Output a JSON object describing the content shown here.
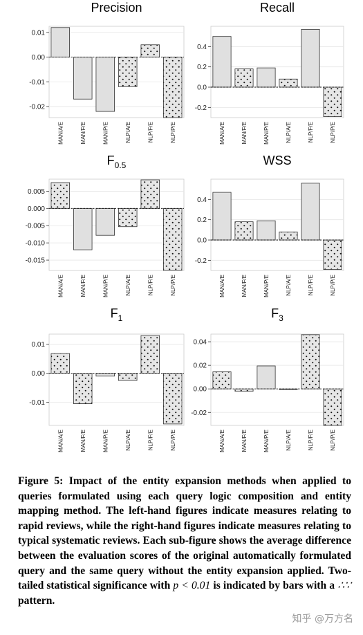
{
  "chart_data": [
    {
      "type": "bar",
      "title": "Precision",
      "categories": [
        "MAN/A/E",
        "MAN/F/E",
        "MAN/P/E",
        "NLP/A/E",
        "NLP/F/E",
        "NLP/P/E"
      ],
      "values": [
        0.012,
        -0.017,
        -0.022,
        -0.012,
        0.005,
        -0.0245
      ],
      "significant": [
        false,
        false,
        false,
        true,
        true,
        true
      ],
      "ylim": [
        -0.0245,
        0.0125
      ],
      "yticks": [
        0.01,
        0.0,
        -0.01,
        -0.02
      ],
      "ytick_labels": [
        "0.01",
        "0.00",
        "-0.01",
        "-0.02"
      ],
      "grid": true
    },
    {
      "type": "bar",
      "title": "Recall",
      "categories": [
        "MAN/A/E",
        "MAN/F/E",
        "MAN/P/E",
        "NLP/A/E",
        "NLP/F/E",
        "NLP/P/E"
      ],
      "values": [
        0.5,
        0.18,
        0.19,
        0.08,
        0.57,
        -0.29
      ],
      "significant": [
        false,
        true,
        false,
        true,
        false,
        true
      ],
      "ylim": [
        -0.3,
        0.6
      ],
      "yticks": [
        0.4,
        0.2,
        0.0,
        -0.2
      ],
      "ytick_labels": [
        "0.4",
        "0.2",
        "0.0",
        "-0.2"
      ],
      "grid": true
    },
    {
      "type": "bar",
      "title": "F",
      "title_sub": "0.5",
      "categories": [
        "MAN/A/E",
        "MAN/F/E",
        "MAN/P/E",
        "NLP/A/E",
        "NLP/F/E",
        "NLP/P/E"
      ],
      "values": [
        0.0075,
        -0.012,
        -0.0078,
        -0.0053,
        0.0083,
        -0.018
      ],
      "significant": [
        true,
        false,
        false,
        true,
        true,
        true
      ],
      "ylim": [
        -0.018,
        0.0085
      ],
      "yticks": [
        0.005,
        0.0,
        -0.005,
        -0.01,
        -0.015
      ],
      "ytick_labels": [
        "0.005",
        "0.000",
        "-0.005",
        "-0.010",
        "-0.015"
      ],
      "grid": true
    },
    {
      "type": "bar",
      "title": "WSS",
      "categories": [
        "MAN/A/E",
        "MAN/F/E",
        "MAN/P/E",
        "NLP/A/E",
        "NLP/F/E",
        "NLP/P/E"
      ],
      "values": [
        0.47,
        0.18,
        0.19,
        0.08,
        0.56,
        -0.29
      ],
      "significant": [
        false,
        true,
        false,
        true,
        false,
        true
      ],
      "ylim": [
        -0.3,
        0.6
      ],
      "yticks": [
        0.4,
        0.2,
        0.0,
        -0.2
      ],
      "ytick_labels": [
        "0.4",
        "0.2",
        "0.0",
        "-0.2"
      ],
      "grid": true
    },
    {
      "type": "bar",
      "title": "F",
      "title_sub": "1",
      "categories": [
        "MAN/A/E",
        "MAN/F/E",
        "MAN/P/E",
        "NLP/A/E",
        "NLP/F/E",
        "NLP/P/E"
      ],
      "values": [
        0.0068,
        -0.0105,
        -0.001,
        -0.0025,
        0.013,
        -0.0175
      ],
      "significant": [
        true,
        true,
        false,
        true,
        true,
        true
      ],
      "ylim": [
        -0.018,
        0.0135
      ],
      "yticks": [
        0.01,
        0.0,
        -0.01
      ],
      "ytick_labels": [
        "0.01",
        "0.00",
        "-0.01"
      ],
      "grid": true
    },
    {
      "type": "bar",
      "title": "F",
      "title_sub": "3",
      "categories": [
        "MAN/A/E",
        "MAN/F/E",
        "MAN/P/E",
        "NLP/A/E",
        "NLP/F/E",
        "NLP/P/E"
      ],
      "values": [
        0.0145,
        -0.002,
        0.0195,
        -0.0005,
        0.046,
        -0.031
      ],
      "significant": [
        true,
        true,
        false,
        true,
        true,
        true
      ],
      "ylim": [
        -0.031,
        0.0465
      ],
      "yticks": [
        0.04,
        0.02,
        0.0,
        -0.02
      ],
      "ytick_labels": [
        "0.04",
        "0.02",
        "0.00",
        "-0.02"
      ],
      "grid": true
    }
  ],
  "caption": {
    "part1": "Figure 5: Impact of the entity expansion methods when applied to queries formulated using each query logic composition and entity mapping method. The left-hand figures indicate measures relating to rapid reviews, while the right-hand figures indicate measures relating to typical systematic reviews. Each sub-figure shows the average difference between the evaluation scores of the original automatically formulated query and the same query without the entity expansion applied. Two-tailed statistical significance with",
    "p_symbol": "p",
    "p_condition": " < 0.01",
    "part2": " is indicated by bars with a ",
    "pattern_symbol": "∴∵",
    "part3": " pattern."
  },
  "watermark": "知乎 @万方名",
  "colors": {
    "bar_fill": "#e0e0e0",
    "bar_stroke": "#333333",
    "grid": "#e6e6e6",
    "zero_line": "#000000"
  }
}
